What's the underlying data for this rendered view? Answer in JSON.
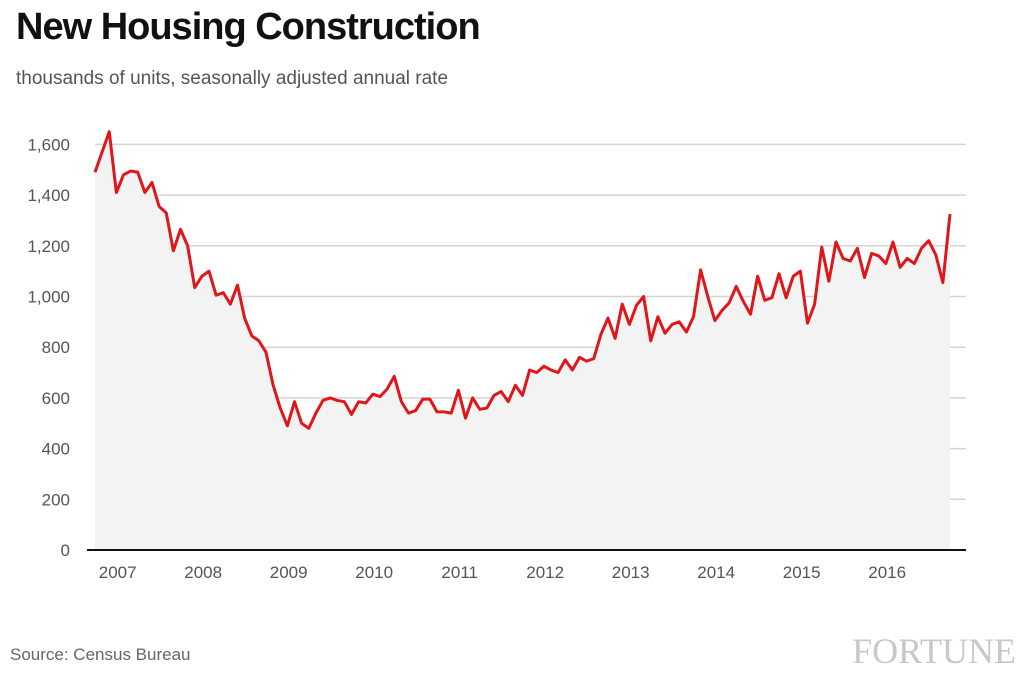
{
  "chart_data": {
    "type": "area",
    "title": "New Housing Construction",
    "subtitle": "thousands of units, seasonally adjusted annual rate",
    "xlabel": "",
    "ylabel": "",
    "ylim": [
      0,
      1700
    ],
    "yticks": [
      0,
      200,
      400,
      600,
      800,
      1000,
      1200,
      1400,
      1600
    ],
    "ytick_labels": [
      "0",
      "200",
      "400",
      "600",
      "800",
      "1,000",
      "1,200",
      "1,400",
      "1,600"
    ],
    "xlim": [
      2007.0,
      2016.83
    ],
    "xtick_labels": [
      "2007",
      "2008",
      "2009",
      "2010",
      "2011",
      "2012",
      "2013",
      "2014",
      "2015",
      "2016"
    ],
    "grid": true,
    "series": [
      {
        "color": "#e0161b",
        "fill": "#f3f3f3",
        "start": "2007-01",
        "frequency": "monthly",
        "values": [
          1490,
          1570,
          1650,
          1410,
          1480,
          1495,
          1490,
          1410,
          1450,
          1355,
          1330,
          1180,
          1265,
          1200,
          1035,
          1080,
          1100,
          1005,
          1015,
          970,
          1045,
          915,
          845,
          825,
          780,
          650,
          560,
          490,
          585,
          500,
          480,
          540,
          590,
          600,
          590,
          585,
          535,
          585,
          580,
          615,
          605,
          635,
          685,
          585,
          540,
          550,
          595,
          595,
          545,
          545,
          540,
          630,
          520,
          600,
          555,
          560,
          610,
          625,
          585,
          650,
          610,
          710,
          700,
          725,
          710,
          700,
          750,
          710,
          760,
          745,
          755,
          850,
          915,
          835,
          970,
          890,
          965,
          1000,
          825,
          920,
          855,
          890,
          900,
          860,
          920,
          1105,
          1000,
          905,
          945,
          975,
          1040,
          980,
          930,
          1080,
          985,
          995,
          1090,
          995,
          1080,
          1100,
          895,
          970,
          1195,
          1060,
          1215,
          1150,
          1140,
          1190,
          1075,
          1170,
          1160,
          1130,
          1215,
          1115,
          1150,
          1130,
          1190,
          1220,
          1165,
          1055,
          1325
        ]
      }
    ]
  },
  "source_label": "Source: Census Bureau",
  "brand_label": "FORTUNE"
}
